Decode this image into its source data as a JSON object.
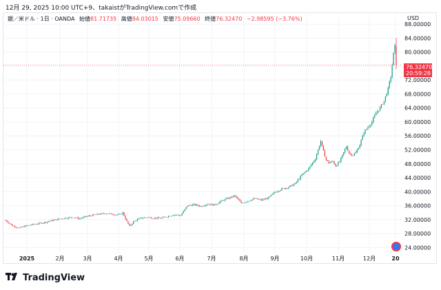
{
  "caption": "12月 29, 2025 10:00 UTC+9、takaistがTradingView.comで作成",
  "legend": {
    "symbol": "銀／米ドル · 1日 · OANDA",
    "open_label": "始値",
    "open": "81.71735",
    "high_label": "高値",
    "high": "84.03015",
    "low_label": "安値",
    "low": "75.09660",
    "close_label": "終値",
    "close": "76.32470",
    "change": "−2.98595 (−3.76%)"
  },
  "currency": "USD",
  "price_tag": {
    "price": "76.32470",
    "countdown": "20:59:28"
  },
  "brand": "TradingView",
  "colors": {
    "up": "#089981",
    "down": "#f23645",
    "grid": "#f0f3fa",
    "tag": "#f23645"
  },
  "chart_data": {
    "type": "candlestick",
    "title": "銀／米ドル · 1日 · OANDA",
    "ylabel": "USD",
    "ylim": [
      22.5,
      89
    ],
    "y_ticks": [
      "88.00000",
      "84.00000",
      "80.00000",
      "76.00000",
      "72.00000",
      "68.00000",
      "64.00000",
      "60.00000",
      "56.00000",
      "52.00000",
      "48.00000",
      "44.00000",
      "40.00000",
      "36.00000",
      "32.00000",
      "28.00000",
      "24.00000"
    ],
    "x_labels": [
      "2025",
      "2月",
      "3月",
      "4月",
      "5月",
      "6月",
      "7月",
      "8月",
      "9月",
      "10月",
      "11月",
      "12月",
      "20"
    ],
    "last": {
      "open": 81.71735,
      "high": 84.03015,
      "low": 75.0966,
      "close": 76.3247
    },
    "series_close": [
      [
        0,
        31.8
      ],
      [
        5,
        30.3
      ],
      [
        10,
        29.6
      ],
      [
        15,
        30.2
      ],
      [
        20,
        30.6
      ],
      [
        25,
        30.9
      ],
      [
        30,
        31.3
      ],
      [
        35,
        31.8
      ],
      [
        40,
        32.2
      ],
      [
        45,
        32.5
      ],
      [
        50,
        32.7
      ],
      [
        55,
        32.3
      ],
      [
        60,
        32.9
      ],
      [
        65,
        33.3
      ],
      [
        70,
        33.6
      ],
      [
        75,
        33.8
      ],
      [
        80,
        33.5
      ],
      [
        85,
        33.4
      ],
      [
        87,
        34.0
      ],
      [
        90,
        31.5
      ],
      [
        92,
        30.1
      ],
      [
        95,
        31.4
      ],
      [
        100,
        32.4
      ],
      [
        105,
        32.7
      ],
      [
        110,
        32.5
      ],
      [
        115,
        32.4
      ],
      [
        120,
        32.9
      ],
      [
        125,
        33.4
      ],
      [
        130,
        33.2
      ],
      [
        135,
        36.0
      ],
      [
        140,
        36.3
      ],
      [
        145,
        35.8
      ],
      [
        150,
        36.5
      ],
      [
        155,
        36.2
      ],
      [
        160,
        37.3
      ],
      [
        165,
        38.1
      ],
      [
        170,
        38.8
      ],
      [
        173,
        37.7
      ],
      [
        175,
        36.6
      ],
      [
        180,
        37.4
      ],
      [
        185,
        38.0
      ],
      [
        190,
        37.6
      ],
      [
        195,
        38.2
      ],
      [
        200,
        39.9
      ],
      [
        205,
        40.8
      ],
      [
        210,
        41.3
      ],
      [
        215,
        42.3
      ],
      [
        220,
        44.8
      ],
      [
        225,
        46.6
      ],
      [
        230,
        49.5
      ],
      [
        232,
        52.0
      ],
      [
        234,
        54.5
      ],
      [
        236,
        51.5
      ],
      [
        238,
        49.1
      ],
      [
        240,
        48.3
      ],
      [
        243,
        48.7
      ],
      [
        245,
        47.4
      ],
      [
        248,
        48.6
      ],
      [
        250,
        50.3
      ],
      [
        253,
        53.0
      ],
      [
        255,
        51.0
      ],
      [
        258,
        50.5
      ],
      [
        260,
        51.2
      ],
      [
        263,
        53.5
      ],
      [
        266,
        57.0
      ],
      [
        269,
        58.5
      ],
      [
        272,
        60.0
      ],
      [
        275,
        62.5
      ],
      [
        278,
        64.0
      ],
      [
        281,
        66.0
      ],
      [
        284,
        69.5
      ],
      [
        286,
        73.0
      ],
      [
        288,
        79.5
      ],
      [
        289,
        81.7
      ],
      [
        290,
        76.3
      ]
    ]
  }
}
